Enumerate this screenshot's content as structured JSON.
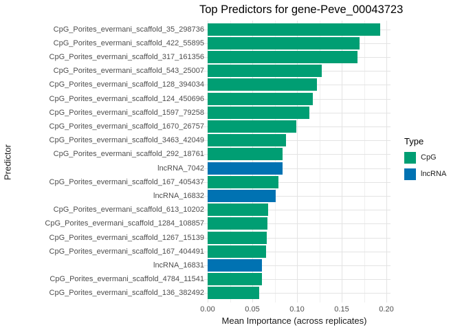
{
  "chart_data": {
    "type": "bar",
    "orientation": "horizontal",
    "title": "Top Predictors for gene-Peve_00043723",
    "xlabel": "Mean Importance (across replicates)",
    "ylabel": "Predictor",
    "xlim": [
      0,
      0.2125
    ],
    "grid": "vertical major+minor, horizontal major at each category",
    "x_ticks": [
      {
        "value": 0.0,
        "label": "0.00"
      },
      {
        "value": 0.05,
        "label": "0.05"
      },
      {
        "value": 0.1,
        "label": "0.10"
      },
      {
        "value": 0.15,
        "label": "0.15"
      },
      {
        "value": 0.2,
        "label": "0.20"
      }
    ],
    "legend": {
      "title": "Type",
      "position": "right",
      "entries": [
        {
          "label": "CpG",
          "color": "#009E73"
        },
        {
          "label": "lncRNA",
          "color": "#0072B2"
        }
      ]
    },
    "bars": [
      {
        "label": "CpG_Porites_evermani_scaffold_35_298736",
        "value": 0.193,
        "type": "CpG"
      },
      {
        "label": "CpG_Porites_evermani_scaffold_422_55895",
        "value": 0.17,
        "type": "CpG"
      },
      {
        "label": "CpG_Porites_evermani_scaffold_317_161356",
        "value": 0.168,
        "type": "CpG"
      },
      {
        "label": "CpG_Porites_evermani_scaffold_543_25007",
        "value": 0.128,
        "type": "CpG"
      },
      {
        "label": "CpG_Porites_evermani_scaffold_128_394034",
        "value": 0.122,
        "type": "CpG"
      },
      {
        "label": "CpG_Porites_evermani_scaffold_124_450696",
        "value": 0.118,
        "type": "CpG"
      },
      {
        "label": "CpG_Porites_evermani_scaffold_1597_79258",
        "value": 0.114,
        "type": "CpG"
      },
      {
        "label": "CpG_Porites_evermani_scaffold_1670_26757",
        "value": 0.099,
        "type": "CpG"
      },
      {
        "label": "CpG_Porites_evermani_scaffold_3463_42049",
        "value": 0.088,
        "type": "CpG"
      },
      {
        "label": "CpG_Porites_evermani_scaffold_292_18761",
        "value": 0.084,
        "type": "CpG"
      },
      {
        "label": "lncRNA_7042",
        "value": 0.084,
        "type": "lncRNA"
      },
      {
        "label": "CpG_Porites_evermani_scaffold_167_405437",
        "value": 0.079,
        "type": "CpG"
      },
      {
        "label": "lncRNA_16832",
        "value": 0.076,
        "type": "lncRNA"
      },
      {
        "label": "CpG_Porites_evermani_scaffold_613_10202",
        "value": 0.068,
        "type": "CpG"
      },
      {
        "label": "CpG_Porites_evermani_scaffold_1284_108857",
        "value": 0.067,
        "type": "CpG"
      },
      {
        "label": "CpG_Porites_evermani_scaffold_1267_15139",
        "value": 0.066,
        "type": "CpG"
      },
      {
        "label": "CpG_Porites_evermani_scaffold_167_404491",
        "value": 0.065,
        "type": "CpG"
      },
      {
        "label": "lncRNA_16831",
        "value": 0.061,
        "type": "lncRNA"
      },
      {
        "label": "CpG_Porites_evermani_scaffold_4784_11541",
        "value": 0.061,
        "type": "CpG"
      },
      {
        "label": "CpG_Porites_evermani_scaffold_136_382492",
        "value": 0.058,
        "type": "CpG"
      }
    ]
  }
}
